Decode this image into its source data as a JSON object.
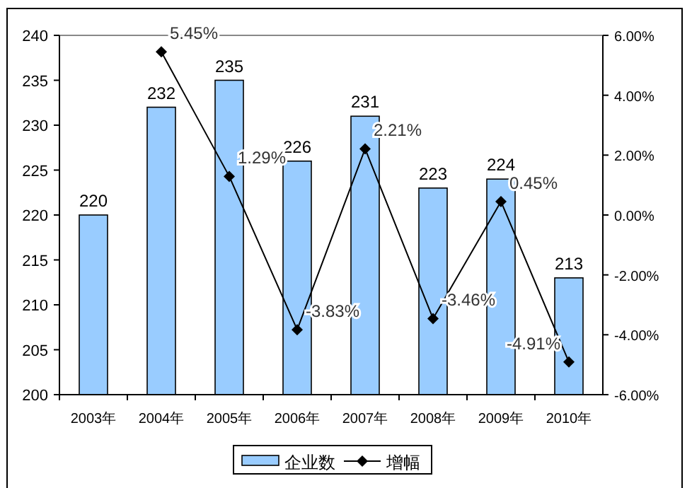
{
  "chart_data": {
    "type": "bar",
    "categories": [
      "2003年",
      "2004年",
      "2005年",
      "2006年",
      "2007年",
      "2008年",
      "2009年",
      "2010年"
    ],
    "series": [
      {
        "name": "企业数",
        "color": "#99ccff",
        "values": [
          220,
          232,
          235,
          226,
          231,
          223,
          224,
          213
        ],
        "value_labels": [
          "220",
          "232",
          "235",
          "226",
          "231",
          "223",
          "224",
          "213"
        ]
      },
      {
        "name": "增幅",
        "type": "line",
        "axis": "y2",
        "color": "#000000",
        "marker": "diamond",
        "values": [
          null,
          5.45,
          1.29,
          -3.83,
          2.21,
          -3.46,
          0.45,
          -4.91
        ],
        "value_labels": [
          null,
          "5.45%",
          "1.29%",
          "-3.83%",
          "2.21%",
          "-3.46%",
          "0.45%",
          "-4.91%"
        ]
      }
    ],
    "ylim": [
      200,
      240
    ],
    "yticks": [
      200,
      205,
      210,
      215,
      220,
      225,
      230,
      235,
      240
    ],
    "y2lim": [
      -6,
      6
    ],
    "y2ticks": [
      {
        "value": -6,
        "label": "-6.00%"
      },
      {
        "value": -4,
        "label": "-4.00%"
      },
      {
        "value": -2,
        "label": "-2.00%"
      },
      {
        "value": 0,
        "label": "0.00%"
      },
      {
        "value": 2,
        "label": "2.00%"
      },
      {
        "value": 4,
        "label": "4.00%"
      },
      {
        "value": 6,
        "label": "6.00%"
      }
    ],
    "legend": "bottom"
  }
}
